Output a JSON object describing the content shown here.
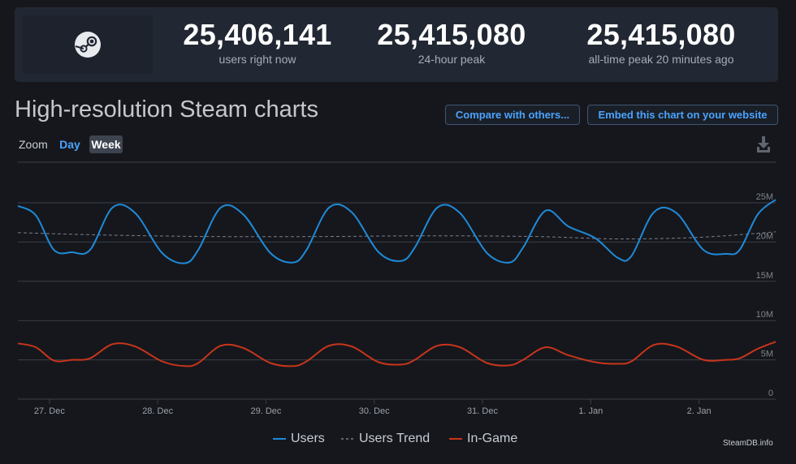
{
  "stats": [
    {
      "value": "25,406,141",
      "label": "users right now"
    },
    {
      "value": "25,415,080",
      "label": "24-hour peak"
    },
    {
      "value": "25,415,080",
      "label": "all-time peak 20 minutes ago"
    }
  ],
  "title": "High-resolution Steam charts",
  "buttons": {
    "compare": "Compare with others...",
    "embed": "Embed this chart on your website"
  },
  "zoom": {
    "label": "Zoom",
    "day": "Day",
    "week": "Week",
    "selected": "Week"
  },
  "credit": "SteamDB.info",
  "colors": {
    "users": "#1f8ad8",
    "trend": "#7a7f88",
    "ingame": "#c8351b",
    "accent": "#4aa3ff"
  },
  "icons": {
    "logo": "steam-logo-icon",
    "download": "download-icon"
  },
  "chart_data": {
    "type": "line",
    "x_ticks": [
      "27. Dec",
      "28. Dec",
      "29. Dec",
      "30. Dec",
      "31. Dec",
      "1. Jan",
      "2. Jan"
    ],
    "y_ticks": [
      "0",
      "5M",
      "10M",
      "15M",
      "20M",
      "25M"
    ],
    "ylim": [
      0,
      26000000
    ],
    "xlim": [
      "2022-12-26T17:00",
      "2023-01-02T17:00"
    ],
    "grid": true,
    "legend_position": "bottom-center",
    "series": [
      {
        "name": "Users",
        "color": "#1f8ad8",
        "style": "solid",
        "points": [
          [
            "2022-12-26T17:00",
            24.6
          ],
          [
            "2022-12-26T21:00",
            23.4
          ],
          [
            "2022-12-27T01:00",
            19.0
          ],
          [
            "2022-12-27T05:00",
            18.7
          ],
          [
            "2022-12-27T09:00",
            19.0
          ],
          [
            "2022-12-27T14:00",
            24.4
          ],
          [
            "2022-12-27T19:00",
            23.7
          ],
          [
            "2022-12-28T01:00",
            18.6
          ],
          [
            "2022-12-28T06:00",
            17.3
          ],
          [
            "2022-12-28T09:00",
            19.0
          ],
          [
            "2022-12-28T14:00",
            24.4
          ],
          [
            "2022-12-28T19:00",
            23.5
          ],
          [
            "2022-12-29T01:00",
            18.6
          ],
          [
            "2022-12-29T06:00",
            17.4
          ],
          [
            "2022-12-29T09:00",
            19.0
          ],
          [
            "2022-12-29T14:00",
            24.4
          ],
          [
            "2022-12-29T19:00",
            23.8
          ],
          [
            "2022-12-30T01:00",
            18.7
          ],
          [
            "2022-12-30T06:00",
            17.6
          ],
          [
            "2022-12-30T09:00",
            19.3
          ],
          [
            "2022-12-30T14:00",
            24.4
          ],
          [
            "2022-12-30T19:00",
            23.7
          ],
          [
            "2022-12-31T01:00",
            18.6
          ],
          [
            "2022-12-31T06:00",
            17.4
          ],
          [
            "2022-12-31T09:00",
            19.3
          ],
          [
            "2022-12-31T14:00",
            24.0
          ],
          [
            "2022-12-31T19:00",
            22.0
          ],
          [
            "2023-01-01T01:00",
            20.5
          ],
          [
            "2023-01-01T06:00",
            18.0
          ],
          [
            "2023-01-01T09:00",
            18.2
          ],
          [
            "2023-01-01T14:00",
            23.8
          ],
          [
            "2023-01-01T19:00",
            23.7
          ],
          [
            "2023-01-02T01:00",
            19.0
          ],
          [
            "2023-01-02T06:00",
            18.5
          ],
          [
            "2023-01-02T09:00",
            19.0
          ],
          [
            "2023-01-02T13:00",
            23.5
          ],
          [
            "2023-01-02T17:00",
            25.4
          ]
        ]
      },
      {
        "name": "Users Trend",
        "color": "#7a7f88",
        "style": "dashed",
        "points": [
          [
            "2022-12-26T17:00",
            21.2
          ],
          [
            "2022-12-27T12:00",
            20.9
          ],
          [
            "2022-12-28T12:00",
            20.7
          ],
          [
            "2022-12-29T12:00",
            20.7
          ],
          [
            "2022-12-30T12:00",
            20.8
          ],
          [
            "2022-12-31T12:00",
            20.7
          ],
          [
            "2023-01-01T06:00",
            20.4
          ],
          [
            "2023-01-02T00:00",
            20.6
          ],
          [
            "2023-01-02T17:00",
            21.3
          ]
        ]
      },
      {
        "name": "In-Game",
        "color": "#c8351b",
        "style": "solid",
        "points": [
          [
            "2022-12-26T17:00",
            7.1
          ],
          [
            "2022-12-26T21:00",
            6.6
          ],
          [
            "2022-12-27T01:00",
            4.9
          ],
          [
            "2022-12-27T05:00",
            5.0
          ],
          [
            "2022-12-27T09:00",
            5.2
          ],
          [
            "2022-12-27T14:00",
            7.0
          ],
          [
            "2022-12-27T19:00",
            6.7
          ],
          [
            "2022-12-28T01:00",
            4.8
          ],
          [
            "2022-12-28T06:00",
            4.2
          ],
          [
            "2022-12-28T09:00",
            4.6
          ],
          [
            "2022-12-28T14:00",
            6.8
          ],
          [
            "2022-12-28T19:00",
            6.5
          ],
          [
            "2022-12-29T01:00",
            4.6
          ],
          [
            "2022-12-29T06:00",
            4.2
          ],
          [
            "2022-12-29T09:00",
            4.8
          ],
          [
            "2022-12-29T14:00",
            6.8
          ],
          [
            "2022-12-29T19:00",
            6.7
          ],
          [
            "2022-12-30T01:00",
            4.7
          ],
          [
            "2022-12-30T06:00",
            4.4
          ],
          [
            "2022-12-30T09:00",
            5.0
          ],
          [
            "2022-12-30T14:00",
            6.8
          ],
          [
            "2022-12-30T19:00",
            6.6
          ],
          [
            "2022-12-31T01:00",
            4.6
          ],
          [
            "2022-12-31T06:00",
            4.3
          ],
          [
            "2022-12-31T09:00",
            5.0
          ],
          [
            "2022-12-31T14:00",
            6.6
          ],
          [
            "2022-12-31T19:00",
            5.6
          ],
          [
            "2023-01-01T01:00",
            4.7
          ],
          [
            "2023-01-01T06:00",
            4.5
          ],
          [
            "2023-01-01T09:00",
            4.8
          ],
          [
            "2023-01-01T14:00",
            6.9
          ],
          [
            "2023-01-01T19:00",
            6.7
          ],
          [
            "2023-01-02T01:00",
            5.0
          ],
          [
            "2023-01-02T06:00",
            5.0
          ],
          [
            "2023-01-02T09:00",
            5.2
          ],
          [
            "2023-01-02T13:00",
            6.4
          ],
          [
            "2023-01-02T17:00",
            7.3
          ]
        ]
      }
    ]
  }
}
